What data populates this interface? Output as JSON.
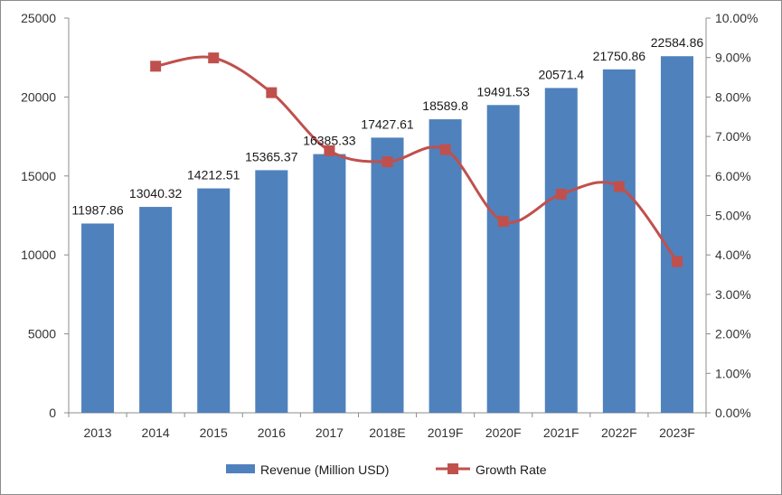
{
  "chart_data": {
    "type": "bar",
    "categories": [
      "2013",
      "2014",
      "2015",
      "2016",
      "2017",
      "2018E",
      "2019F",
      "2020F",
      "2021F",
      "2022F",
      "2023F"
    ],
    "series": [
      {
        "name": "Revenue (Million USD)",
        "type": "bar",
        "axis": "left",
        "values": [
          11987.86,
          13040.32,
          14212.51,
          15365.37,
          16385.33,
          17427.61,
          18589.8,
          19491.53,
          20571.4,
          21750.86,
          22584.86
        ],
        "labels": [
          "11987.86",
          "13040.32",
          "14212.51",
          "15365.37",
          "16385.33",
          "17427.61",
          "18589.8",
          "19491.53",
          "20571.4",
          "21750.86",
          "22584.86"
        ]
      },
      {
        "name": "Growth Rate",
        "type": "line",
        "axis": "right",
        "smooth": true,
        "marker": "square",
        "values": [
          null,
          0.0878,
          0.0899,
          0.0811,
          0.0664,
          0.0636,
          0.0667,
          0.0485,
          0.0554,
          0.0573,
          0.0383
        ]
      }
    ],
    "y_left": {
      "range": [
        0,
        25000
      ],
      "ticks": [
        0,
        5000,
        10000,
        15000,
        20000,
        25000
      ],
      "tick_labels": [
        "0",
        "5000",
        "10000",
        "15000",
        "20000",
        "25000"
      ]
    },
    "y_right": {
      "range": [
        0,
        0.1
      ],
      "ticks": [
        0,
        0.01,
        0.02,
        0.03,
        0.04,
        0.05,
        0.06,
        0.07,
        0.08,
        0.09,
        0.1
      ],
      "tick_labels": [
        "0.00%",
        "1.00%",
        "2.00%",
        "3.00%",
        "4.00%",
        "5.00%",
        "6.00%",
        "7.00%",
        "8.00%",
        "9.00%",
        "10.00%"
      ]
    },
    "grid": false,
    "legend_position": "bottom",
    "colors": {
      "bar": "#4f81bd",
      "line": "#c0504d",
      "axis": "#8c8c8c"
    }
  }
}
